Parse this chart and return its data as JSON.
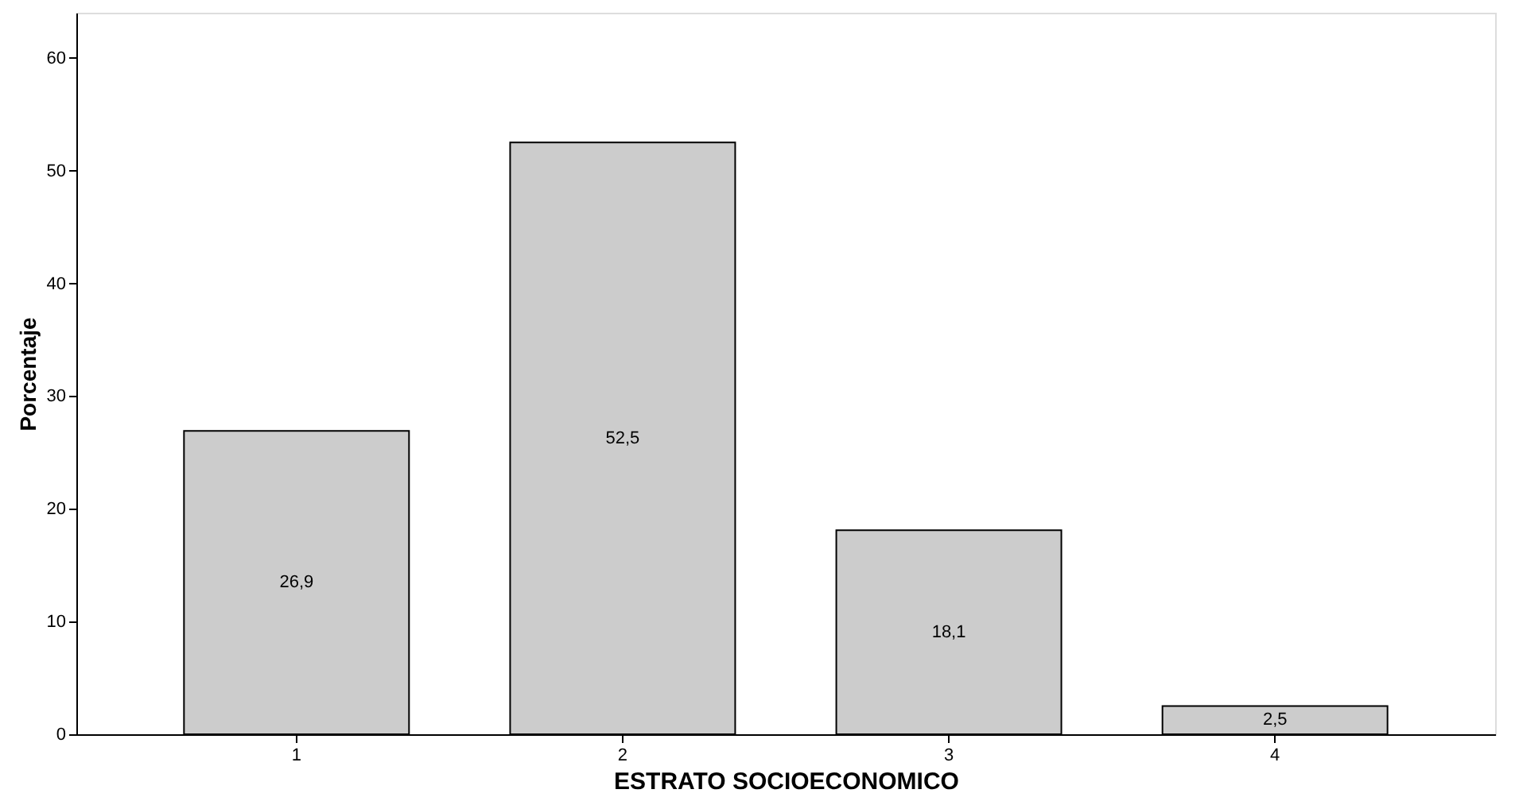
{
  "chart_data": {
    "type": "bar",
    "xlabel": "ESTRATO SOCIOECONOMICO",
    "ylabel": "Porcentaje",
    "categories": [
      "1",
      "2",
      "3",
      "4"
    ],
    "values": [
      26.9,
      52.5,
      18.1,
      2.5
    ],
    "value_labels": [
      "26,9",
      "52,5",
      "18,1",
      "2,5"
    ],
    "color": "#cccccc",
    "ylim": [
      0,
      64
    ],
    "yticks": [
      0,
      10,
      20,
      30,
      40,
      50,
      60
    ],
    "grid": false
  }
}
